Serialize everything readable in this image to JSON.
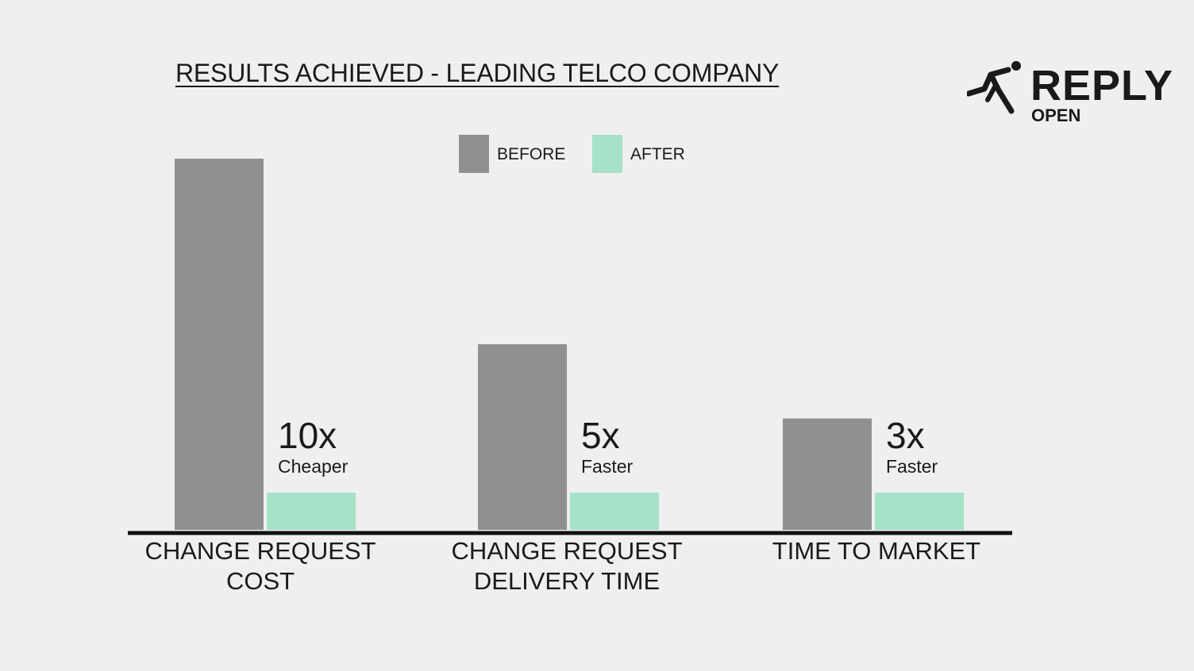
{
  "chart_data": {
    "type": "bar",
    "title": "RESULTS ACHIEVED - LEADING TELCO COMPANY",
    "categories": [
      [
        "CHANGE REQUEST",
        "COST"
      ],
      [
        "CHANGE REQUEST",
        "DELIVERY TIME"
      ],
      [
        "TIME TO MARKET"
      ]
    ],
    "series": [
      {
        "name": "BEFORE",
        "color": "#928f8f",
        "values": [
          10,
          5,
          3
        ]
      },
      {
        "name": "AFTER",
        "color": "#a5e2c8",
        "values": [
          1,
          1,
          1
        ]
      }
    ],
    "annotations": [
      {
        "multiplier": "10x",
        "label": "Cheaper"
      },
      {
        "multiplier": "5x",
        "label": "Faster"
      },
      {
        "multiplier": "3x",
        "label": "Faster"
      }
    ],
    "ylim": [
      0,
      10
    ],
    "grid": false,
    "legend": "top-center"
  },
  "logo": {
    "word": "REPLY",
    "sub": "OPEN"
  }
}
